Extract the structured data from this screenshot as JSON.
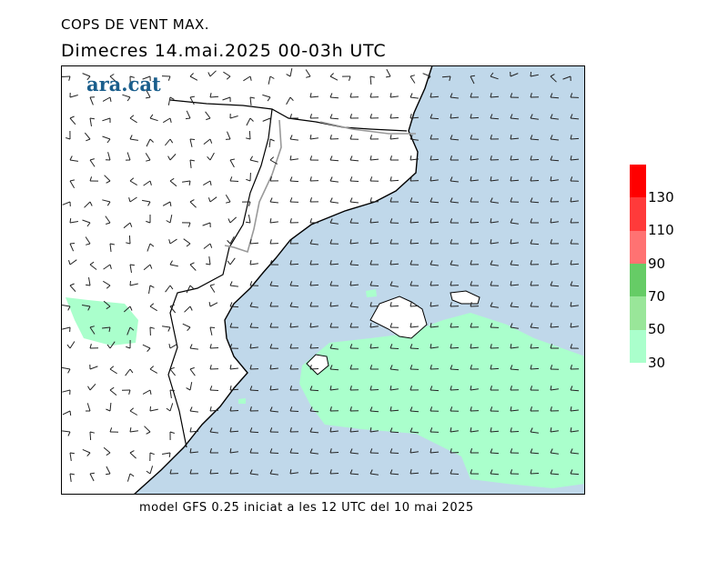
{
  "header": {
    "title": "COPS DE VENT MAX.",
    "subtitle": "Dimecres  14.mai.2025 00-03h UTC"
  },
  "logo": {
    "text": "ara.cat"
  },
  "footer": {
    "text": "model GFS 0.25 iniciat a les 12 UTC del 10 mai 2025"
  },
  "legend": {
    "labels": [
      "130",
      "110",
      "90",
      "70",
      "50",
      "30"
    ],
    "bands": [
      "#ff0000",
      "#ff3a3a",
      "#ff7272",
      "#66cc66",
      "#99e699",
      "#aaffcc"
    ]
  },
  "colors": {
    "sea": "#c0d8ea",
    "gust_30_50": "#aaffcc",
    "gust_50_70": "#99e699",
    "land": "#ffffff",
    "border": "#999999"
  },
  "chart_data": {
    "type": "heatmap",
    "variable": "wind gust",
    "legend_levels": [
      30,
      50,
      70,
      90,
      110,
      130
    ]
  }
}
